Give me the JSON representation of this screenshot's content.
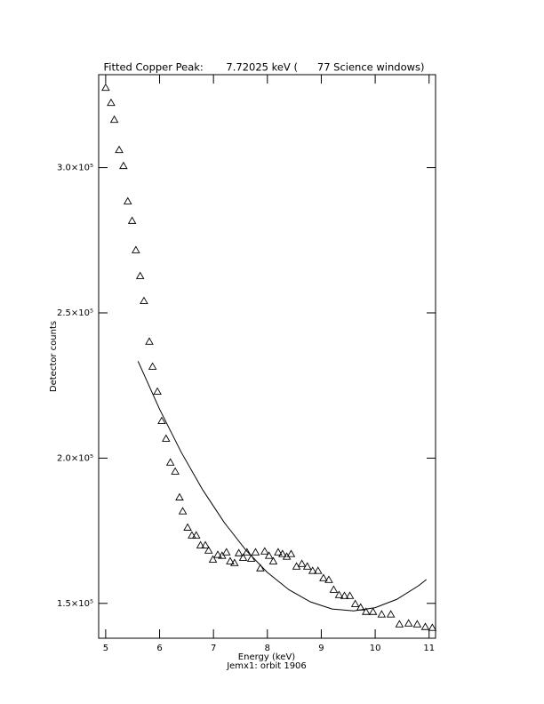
{
  "chart_data": {
    "type": "scatter",
    "title": "Fitted Copper Peak:       7.72025 keV (      77 Science windows)",
    "x_label": "Energy (keV)",
    "x_sublabel": "Jemx1: orbit 1906",
    "y_label": "Detector counts",
    "xlim": [
      4.87,
      11.12
    ],
    "ylim": [
      138000,
      332000
    ],
    "xticks": [
      5,
      6,
      7,
      8,
      9,
      10,
      11
    ],
    "yticks": [
      {
        "value": 150000,
        "label": "1.5×10⁵"
      },
      {
        "value": 200000,
        "label": "2.0×10⁵"
      },
      {
        "value": 250000,
        "label": "2.5×10⁵"
      },
      {
        "value": 300000,
        "label": "3.0×10⁵"
      }
    ],
    "series": [
      {
        "marker": "triangle",
        "color": "#000000",
        "x": [
          5.0,
          5.1,
          5.16,
          5.25,
          5.33,
          5.41,
          5.49,
          5.56,
          5.64,
          5.71,
          5.81,
          5.87,
          5.96,
          6.04,
          6.12,
          6.2,
          6.29,
          6.37,
          6.43,
          6.52,
          6.6,
          6.68,
          6.76,
          6.85,
          6.91,
          6.99,
          7.08,
          7.16,
          7.24,
          7.31,
          7.39,
          7.47,
          7.55,
          7.62,
          7.7,
          7.78,
          7.87,
          7.95,
          8.03,
          8.11,
          8.2,
          8.28,
          8.36,
          8.44,
          8.54,
          8.64,
          8.74,
          8.84,
          8.94,
          9.04,
          9.14,
          9.23,
          9.33,
          9.43,
          9.53,
          9.63,
          9.73,
          9.83,
          9.96,
          10.12,
          10.29,
          10.45,
          10.62,
          10.78,
          10.93,
          11.06
        ],
        "values": [
          327500,
          322300,
          316500,
          306100,
          300600,
          288400,
          281700,
          271600,
          262700,
          254100,
          240100,
          231500,
          222900,
          212800,
          206700,
          198500,
          195400,
          186500,
          181700,
          176100,
          173400,
          173400,
          170000,
          170000,
          168200,
          165100,
          166700,
          166400,
          167600,
          164500,
          163900,
          167300,
          165700,
          167600,
          165400,
          167600,
          162100,
          167900,
          166400,
          164500,
          167600,
          167000,
          166100,
          167000,
          162700,
          163600,
          162700,
          161200,
          161200,
          158700,
          158100,
          154700,
          152900,
          152600,
          152600,
          149800,
          148600,
          147100,
          147100,
          146200,
          146200,
          142800,
          143100,
          142800,
          141900,
          141600
        ]
      },
      {
        "marker": "line",
        "color": "#000000",
        "x": [
          5.6,
          6.0,
          6.4,
          6.8,
          7.2,
          7.6,
          8.0,
          8.4,
          8.8,
          9.2,
          9.6,
          10.0,
          10.4,
          10.8,
          10.95
        ],
        "values": [
          233385,
          216852,
          202083,
          189077,
          177835,
          168355,
          160640,
          154688,
          150500,
          148075,
          147414,
          148516,
          151382,
          156011,
          158200
        ]
      }
    ]
  }
}
